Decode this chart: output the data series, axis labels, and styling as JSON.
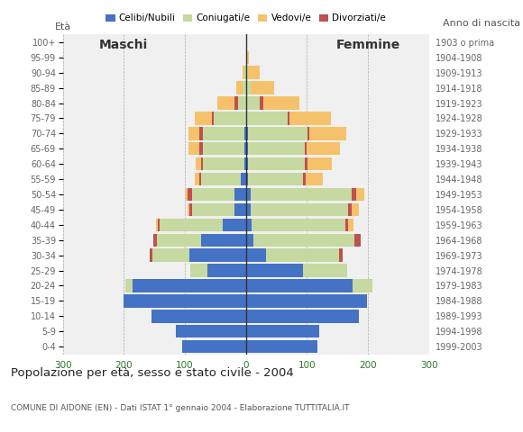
{
  "age_groups": [
    "0-4",
    "5-9",
    "10-14",
    "15-19",
    "20-24",
    "25-29",
    "30-34",
    "35-39",
    "40-44",
    "45-49",
    "50-54",
    "55-59",
    "60-64",
    "65-69",
    "70-74",
    "75-79",
    "80-84",
    "85-89",
    "90-94",
    "95-99",
    "100+"
  ],
  "birth_years": [
    "1999-2003",
    "1994-1998",
    "1989-1993",
    "1984-1988",
    "1979-1983",
    "1974-1978",
    "1969-1973",
    "1964-1968",
    "1959-1963",
    "1954-1958",
    "1949-1953",
    "1944-1948",
    "1939-1943",
    "1934-1938",
    "1929-1933",
    "1924-1928",
    "1919-1923",
    "1914-1918",
    "1909-1913",
    "1904-1908",
    "1903 o prima"
  ],
  "male": {
    "celibinubili": [
      105,
      115,
      155,
      200,
      185,
      63,
      93,
      73,
      38,
      18,
      18,
      8,
      3,
      3,
      3,
      0,
      0,
      0,
      0,
      0,
      0
    ],
    "coniugati": [
      0,
      0,
      0,
      0,
      13,
      28,
      60,
      73,
      103,
      70,
      70,
      65,
      68,
      68,
      68,
      53,
      13,
      5,
      2,
      0,
      0
    ],
    "vedovi": [
      0,
      0,
      0,
      0,
      0,
      0,
      0,
      0,
      3,
      3,
      3,
      8,
      8,
      18,
      18,
      28,
      28,
      10,
      3,
      0,
      0
    ],
    "divorziati": [
      0,
      0,
      0,
      0,
      0,
      0,
      5,
      5,
      3,
      5,
      8,
      3,
      3,
      5,
      5,
      3,
      5,
      0,
      0,
      0,
      0
    ]
  },
  "female": {
    "celibenubili": [
      118,
      120,
      185,
      198,
      175,
      93,
      33,
      13,
      10,
      8,
      8,
      3,
      3,
      3,
      3,
      0,
      0,
      0,
      0,
      0,
      0
    ],
    "coniugate": [
      0,
      0,
      0,
      0,
      33,
      73,
      120,
      165,
      153,
      160,
      165,
      90,
      93,
      93,
      98,
      68,
      23,
      8,
      3,
      0,
      0
    ],
    "vedove": [
      0,
      0,
      0,
      0,
      0,
      0,
      0,
      0,
      8,
      13,
      13,
      28,
      40,
      55,
      60,
      68,
      60,
      38,
      20,
      5,
      0
    ],
    "divorziate": [
      0,
      0,
      0,
      0,
      0,
      0,
      5,
      10,
      5,
      5,
      8,
      5,
      5,
      3,
      3,
      3,
      5,
      0,
      0,
      0,
      0
    ]
  },
  "colors": {
    "celibinubili": "#4472c4",
    "coniugati": "#c5d9a0",
    "vedovi": "#f5c26b",
    "divorziati": "#c0504d"
  },
  "xlim": 300,
  "title": "Popolazione per età, sesso e stato civile - 2004",
  "subtitle": "COMUNE DI AIDONE (EN) - Dati ISTAT 1° gennaio 2004 - Elaborazione TUTTITALIA.IT",
  "ylabel_left": "Età",
  "ylabel_right": "Anno di nascita",
  "legend_labels": [
    "Celibi/Nubili",
    "Coniugati/e",
    "Vedovi/e",
    "Divorziati/e"
  ],
  "bg_color": "#ffffff",
  "plot_bg": "#f0f0f0"
}
